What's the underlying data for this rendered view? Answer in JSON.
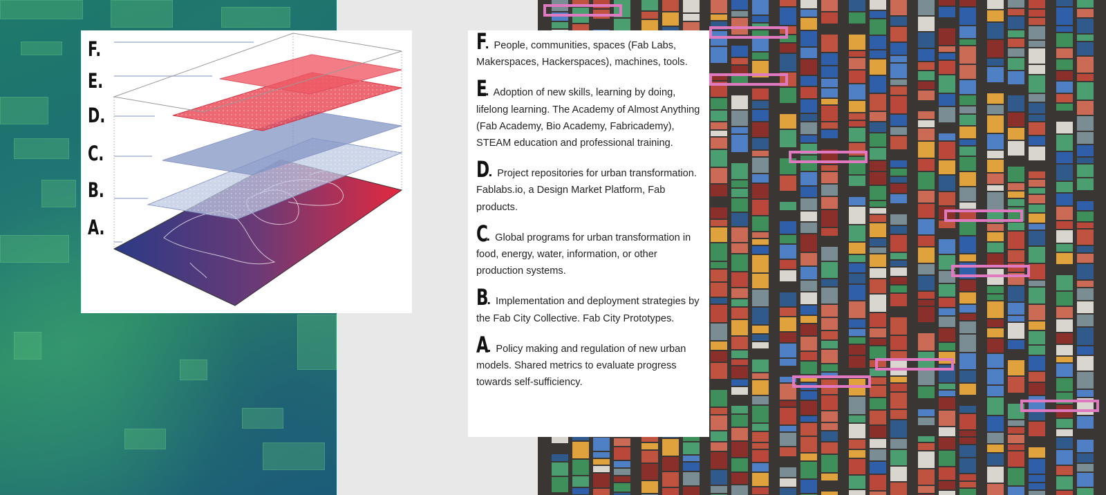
{
  "diagram": {
    "layers": [
      "F.",
      "E.",
      "D.",
      "C.",
      "B.",
      "A."
    ]
  },
  "entries": [
    {
      "letter": "F",
      "text": "People, communities, spaces (Fab Labs, Makerspaces, Hackerspaces), machines, tools."
    },
    {
      "letter": "E",
      "text": "Adoption of new skills, learning by doing, lifelong learning. The Academy of Almost Anything (Fab Academy, Bio Academy, Fabricademy), STEAM education and professional training."
    },
    {
      "letter": "D",
      "text": "Project repositories for urban transformation. Fablabs.io, a Design Market Platform, Fab products."
    },
    {
      "letter": "C",
      "text": "Global programs for urban transformation in food, energy, water, information, or other production systems."
    },
    {
      "letter": "B",
      "text": "Implementation and deployment strategies by the Fab City Collective. Fab City Prototypes."
    },
    {
      "letter": "A",
      "text": "Policy making and regulation of new urban models. Shared metrics to evaluate progress towards self-sufficiency."
    }
  ],
  "colors": {
    "red_layer": "#e8424f",
    "blue_layer": "#8b9cc7",
    "base_start": "#2b3a86",
    "base_end": "#e2293f"
  }
}
